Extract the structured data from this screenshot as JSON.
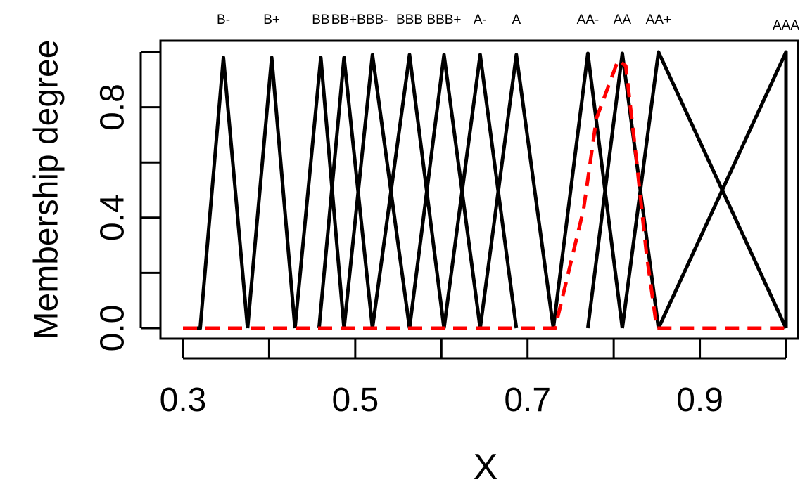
{
  "chart_data": {
    "type": "line",
    "xlabel": "X",
    "ylabel": "Membership degree",
    "xlim": [
      0.3,
      1.0
    ],
    "ylim": [
      0.0,
      1.0
    ],
    "x_ticks": [
      0.3,
      0.4,
      0.5,
      0.6,
      0.7,
      0.8,
      0.9,
      1.0
    ],
    "x_tick_labels": [
      "0.3",
      "0.5",
      "0.7",
      "0.9"
    ],
    "x_tick_label_values": [
      0.3,
      0.5,
      0.7,
      0.9
    ],
    "y_ticks": [
      0.0,
      0.2,
      0.4,
      0.6,
      0.8,
      1.0
    ],
    "y_tick_labels": [
      "0.0",
      "0.4",
      "0.8"
    ],
    "y_tick_label_values": [
      0.0,
      0.4,
      0.8
    ],
    "grid": false,
    "colors": {
      "membership": "#000000",
      "highlight": "#ff0000"
    },
    "series": [
      {
        "name": "B-",
        "points": [
          [
            0.3,
            0
          ],
          [
            0.32,
            0
          ],
          [
            0.347,
            0.98
          ],
          [
            0.375,
            0
          ]
        ]
      },
      {
        "name": "B+",
        "points": [
          [
            0.375,
            0
          ],
          [
            0.403,
            0.98
          ],
          [
            0.43,
            0
          ]
        ]
      },
      {
        "name": "BB",
        "points": [
          [
            0.43,
            0
          ],
          [
            0.46,
            0.98
          ],
          [
            0.487,
            0
          ]
        ]
      },
      {
        "name": "BB+",
        "points": [
          [
            0.458,
            0
          ],
          [
            0.487,
            0.98
          ],
          [
            0.52,
            0
          ]
        ]
      },
      {
        "name": "BBB-",
        "points": [
          [
            0.487,
            0
          ],
          [
            0.52,
            0.99
          ],
          [
            0.563,
            0
          ]
        ]
      },
      {
        "name": "BBB",
        "points": [
          [
            0.52,
            0
          ],
          [
            0.563,
            0.99
          ],
          [
            0.603,
            0
          ]
        ]
      },
      {
        "name": "BBB+",
        "points": [
          [
            0.563,
            0
          ],
          [
            0.603,
            0.99
          ],
          [
            0.645,
            0
          ]
        ]
      },
      {
        "name": "A-",
        "points": [
          [
            0.603,
            0
          ],
          [
            0.645,
            0.99
          ],
          [
            0.687,
            0
          ]
        ]
      },
      {
        "name": "A",
        "points": [
          [
            0.645,
            0
          ],
          [
            0.687,
            0.99
          ],
          [
            0.73,
            0
          ]
        ]
      },
      {
        "name": "AA-",
        "points": [
          [
            0.73,
            0
          ],
          [
            0.77,
            0.995
          ],
          [
            0.81,
            0
          ]
        ]
      },
      {
        "name": "AA",
        "points": [
          [
            0.77,
            0
          ],
          [
            0.81,
            0.995
          ],
          [
            0.852,
            0
          ]
        ]
      },
      {
        "name": "AA+",
        "points": [
          [
            0.81,
            0
          ],
          [
            0.852,
            1.0
          ],
          [
            1.0,
            0
          ]
        ]
      },
      {
        "name": "AAA",
        "points": [
          [
            0.852,
            0
          ],
          [
            1.0,
            1.0
          ],
          [
            1.0,
            0
          ]
        ]
      },
      {
        "name": "",
        "style": "dashed-red",
        "points": [
          [
            0.3,
            0
          ],
          [
            0.732,
            0
          ],
          [
            0.765,
            0.43
          ],
          [
            0.78,
            0.76
          ],
          [
            0.805,
            0.97
          ],
          [
            0.814,
            0.95
          ],
          [
            0.826,
            0.62
          ],
          [
            0.838,
            0.27
          ],
          [
            0.85,
            0
          ],
          [
            1.0,
            0
          ]
        ]
      }
    ],
    "grade_labels": [
      {
        "text": "B-",
        "x": 0.347
      },
      {
        "text": "B+",
        "x": 0.403
      },
      {
        "text": "BB",
        "x": 0.46
      },
      {
        "text": "BB+",
        "x": 0.487
      },
      {
        "text": "BBB-",
        "x": 0.52
      },
      {
        "text": "BBB",
        "x": 0.563
      },
      {
        "text": "BBB+",
        "x": 0.603
      },
      {
        "text": "A-",
        "x": 0.645
      },
      {
        "text": "A",
        "x": 0.687
      },
      {
        "text": "AA-",
        "x": 0.77
      },
      {
        "text": "AA",
        "x": 0.81
      },
      {
        "text": "AA+",
        "x": 0.852
      },
      {
        "text": "AAA",
        "x": 1.0
      }
    ]
  }
}
